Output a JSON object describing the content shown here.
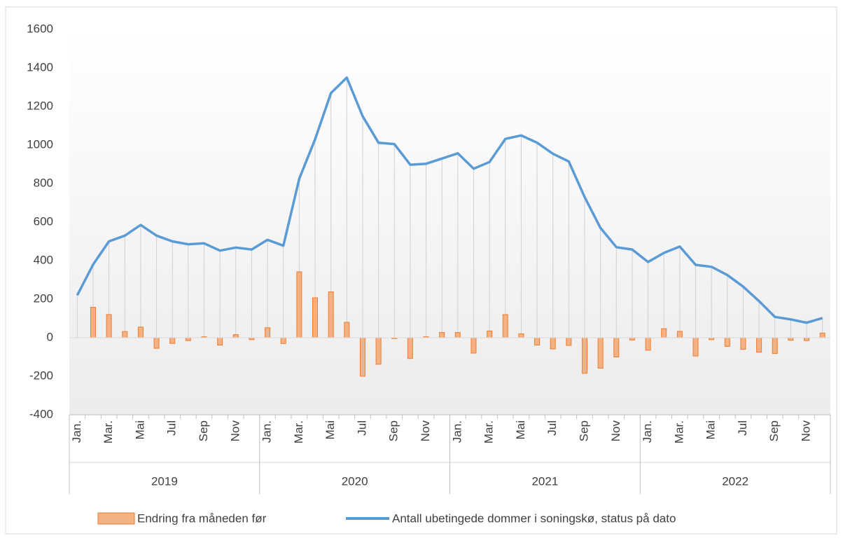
{
  "chart_data": {
    "type": "bar-line",
    "categories": [
      "Jan.",
      null,
      "Mar.",
      null,
      "Mai",
      null,
      "Jul",
      null,
      "Sep",
      null,
      "Nov",
      null,
      "Jan.",
      null,
      "Mar.",
      null,
      "Mai",
      null,
      "Jul",
      null,
      "Sep",
      null,
      "Nov",
      null,
      "Jan.",
      null,
      "Mar.",
      null,
      "Mai",
      null,
      "Jul",
      null,
      "Sep",
      null,
      "Nov",
      null,
      "Jan.",
      null,
      "Mar.",
      null,
      "Mai",
      null,
      "Jul",
      null,
      "Sep",
      null,
      "Nov",
      null
    ],
    "years": [
      "2019",
      "2020",
      "2021",
      "2022"
    ],
    "series": [
      {
        "name": "Endring fra måneden før",
        "type": "bar",
        "color": "#f4b183",
        "edge_color": "#ed7d31",
        "values": [
          null,
          158,
          120,
          32,
          55,
          -55,
          -30,
          -15,
          5,
          -38,
          16,
          -10,
          52,
          -30,
          342,
          207,
          238,
          80,
          -200,
          -138,
          -5,
          -108,
          5,
          27,
          27,
          -80,
          35,
          120,
          20,
          -38,
          -58,
          -40,
          -185,
          -158,
          -100,
          -12,
          -65,
          47,
          33,
          -95,
          -10,
          -45,
          -60,
          -75,
          -82,
          -13,
          -15,
          24
        ]
      },
      {
        "name": "Antall ubetingede dommer i soningskø,  status på dato",
        "type": "line",
        "color": "#5b9bd5",
        "values": [
          220,
          380,
          500,
          530,
          585,
          530,
          500,
          485,
          490,
          452,
          468,
          458,
          508,
          478,
          825,
          1030,
          1270,
          1350,
          1150,
          1012,
          1005,
          898,
          903,
          930,
          957,
          877,
          912,
          1032,
          1050,
          1012,
          955,
          915,
          730,
          570,
          470,
          458,
          393,
          440,
          473,
          378,
          368,
          325,
          265,
          190,
          108,
          95,
          78,
          102
        ]
      }
    ],
    "ylim": [
      -400,
      1600
    ],
    "yticks": [
      -400,
      -200,
      0,
      200,
      400,
      600,
      800,
      1000,
      1200,
      1400,
      1600
    ],
    "drop_lines": true,
    "legend": "bottom"
  }
}
